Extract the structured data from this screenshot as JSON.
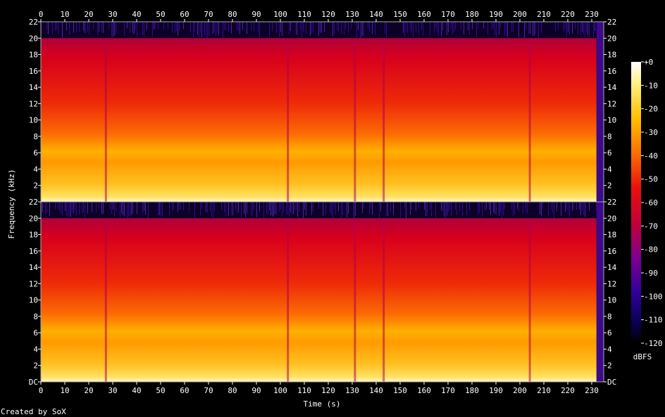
{
  "chart_data": {
    "type": "heatmap",
    "title": "",
    "xlabel": "Time (s)",
    "ylabel": "Frequency (kHz)",
    "xlim": [
      0,
      235
    ],
    "ylim": [
      0,
      22
    ],
    "x_ticks": [
      "0",
      "10",
      "20",
      "30",
      "40",
      "50",
      "60",
      "70",
      "80",
      "90",
      "100",
      "110",
      "120",
      "130",
      "140",
      "150",
      "160",
      "170",
      "180",
      "190",
      "200",
      "210",
      "220",
      "230"
    ],
    "y_ticks": [
      "DC",
      "2",
      "4",
      "6",
      "8",
      "10",
      "12",
      "14",
      "16",
      "18",
      "20",
      "22"
    ],
    "channels": 2,
    "colorbar": {
      "label": "dBFS",
      "range": [
        -120,
        0
      ],
      "ticks": [
        "+0",
        "-10",
        "-20",
        "-30",
        "-40",
        "-50",
        "-60",
        "-70",
        "-80",
        "-90",
        "-100",
        "-110",
        "-120"
      ]
    },
    "notes": [
      "Created by SoX"
    ],
    "content_cutoff_khz": 20,
    "dropouts_s": [
      27,
      103,
      131,
      143,
      204
    ],
    "end_s": 232
  }
}
